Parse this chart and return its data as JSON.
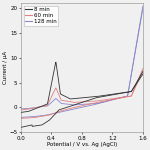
{
  "title": "",
  "xlabel": "Potential / V vs. Ag (AgCl)",
  "ylabel": "Current / µA",
  "xlim": [
    0.0,
    1.6
  ],
  "ylim": [
    -5,
    21
  ],
  "yticks": [
    -5,
    0,
    5,
    10,
    15,
    20
  ],
  "xticks": [
    0.0,
    0.4,
    0.8,
    1.2,
    1.6
  ],
  "legend_labels": [
    "8 min",
    "60 min",
    "128 min"
  ],
  "line_colors": [
    "#333333",
    "#e08080",
    "#8888cc"
  ],
  "background_color": "#f0f0f0",
  "figsize": [
    1.5,
    1.5
  ],
  "dpi": 100,
  "xlabel_fontsize": 4,
  "ylabel_fontsize": 4,
  "tick_fontsize": 4,
  "legend_fontsize": 4
}
